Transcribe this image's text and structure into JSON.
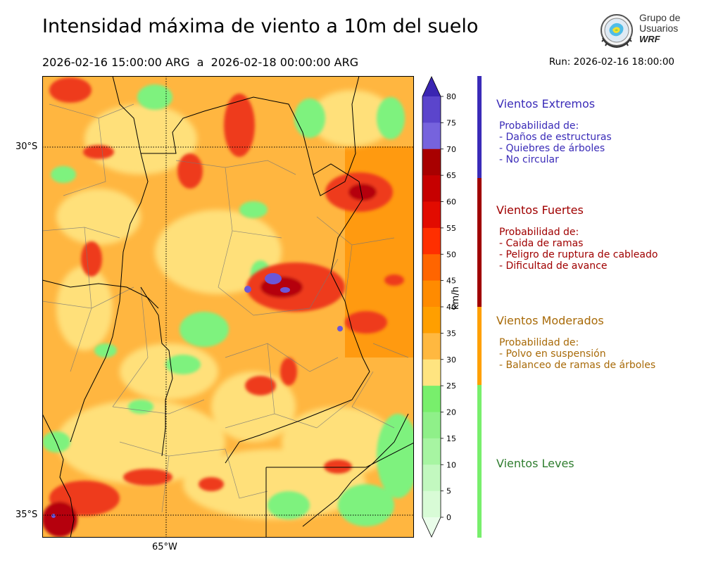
{
  "title": "Intensidad máxima de viento a 10m del suelo",
  "period": {
    "start": "2026-02-16 15:00:00 ARG",
    "separator": "a",
    "end": "2026-02-18 00:00:00 ARG"
  },
  "run": "Run: 2026-02-16 18:00:00",
  "logo": {
    "line1": "Grupo de",
    "line2": "Usuarios",
    "line3": "WRF"
  },
  "map": {
    "lat_labels": [
      "30°S",
      "35°S"
    ],
    "lon_labels": [
      "65°W"
    ],
    "colors": {
      "calm": "#7ef27e",
      "light_yellow": "#ffe07a",
      "orange": "#ffb640",
      "dark_orange": "#ff9a10",
      "red": "#ee3a1e",
      "dark_red": "#b5000e",
      "purple": "#6b57d8"
    }
  },
  "colorbar": {
    "unit": "km/h",
    "ticks": [
      "80",
      "75",
      "70",
      "65",
      "60",
      "55",
      "50",
      "45",
      "40",
      "35",
      "30",
      "25",
      "20",
      "15",
      "10",
      "5",
      "0"
    ],
    "segments": [
      "#3a25b2",
      "#5b45cc",
      "#7663dd",
      "#a80000",
      "#c60000",
      "#e20b00",
      "#ff2f00",
      "#ff6500",
      "#ff8b00",
      "#ff9f00",
      "#ffb840",
      "#ffe480",
      "#78ef6c",
      "#8ff089",
      "#a7f5a2",
      "#c2f8bf",
      "#d8fbd6",
      "#eafdea"
    ]
  },
  "categories": [
    {
      "title": "Vientos Extremos",
      "color": "#3a2bb8",
      "bar_color": "#3a2bb8",
      "heading": "Probabilidad de:",
      "items": [
        "- Daños de estructuras",
        "- Quiebres de árboles",
        "- No circular"
      ]
    },
    {
      "title": "Vientos Fuertes",
      "color": "#a00000",
      "bar_color": "#a00000",
      "heading": "Probabilidad de:",
      "items": [
        "- Caida de ramas",
        "- Peligro de ruptura de cableado",
        "- Dificultad de avance"
      ]
    },
    {
      "title": "Vientos Moderados",
      "color": "#a86a08",
      "bar_color": "#ffa000",
      "heading": "Probabilidad de:",
      "items": [
        "- Polvo en suspensión",
        "- Balanceo de ramas de árboles"
      ]
    },
    {
      "title": "Vientos Leves",
      "color": "#2f7d2f",
      "bar_color": "#78ef6c",
      "heading": "",
      "items": []
    }
  ]
}
